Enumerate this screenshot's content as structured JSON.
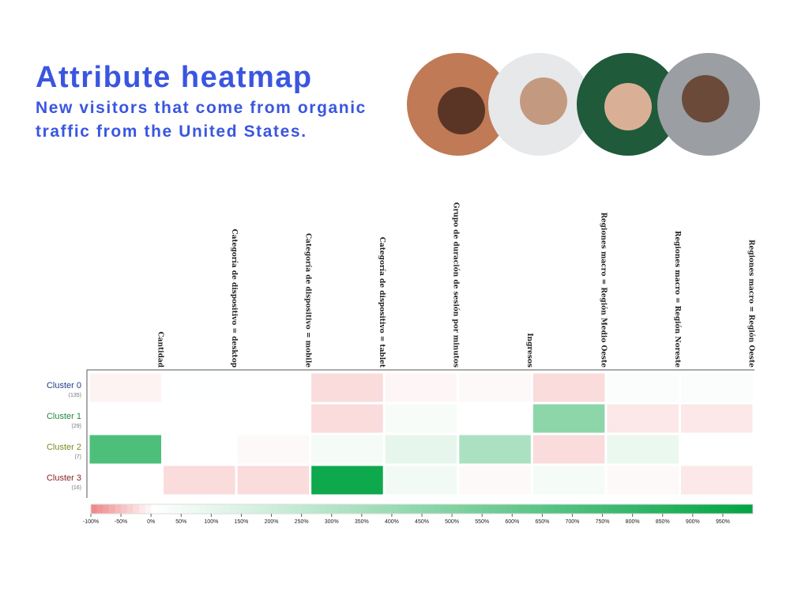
{
  "header": {
    "title": "Attribute heatmap",
    "subtitle": "New visitors that come from organic traffic from the United States."
  },
  "chart_data": {
    "type": "heatmap",
    "columns": [
      "Cantidad",
      "Categoría de dispositivo = desktop",
      "Categoría de dispositivo = mobile",
      "Categoría de dispositivo = tablet",
      "Grupo de duración de sesión por minutos",
      "Ingresos",
      "Regiones macro = Región Medio Oeste",
      "Regiones macro = Región Noreste",
      "Regiones macro = Región Oeste"
    ],
    "rows": [
      "Cluster 0",
      "Cluster 1",
      "Cluster 2",
      "Cluster 3"
    ],
    "row_counts": [
      "(135)",
      "(29)",
      "(7)",
      "(16)"
    ],
    "row_colors": [
      "#1f3d8a",
      "#1f8a3a",
      "#7a8a1f",
      "#8a1f1f"
    ],
    "values": [
      [
        -10,
        2,
        5,
        -30,
        -8,
        -5,
        -30,
        20,
        20
      ],
      [
        0,
        5,
        3,
        -30,
        30,
        0,
        450,
        -20,
        -20
      ],
      [
        700,
        5,
        -5,
        40,
        100,
        330,
        -30,
        80,
        0
      ],
      [
        3,
        -30,
        -30,
        950,
        50,
        -5,
        40,
        -5,
        -20
      ]
    ],
    "negative_color": "#ee8a8a",
    "positive_color": "#00a443",
    "clim": [
      -100,
      1000
    ],
    "cticks": [
      {
        "value": -100,
        "label": "-100%"
      },
      {
        "value": -50,
        "label": "-50%"
      },
      {
        "value": 0,
        "label": "0%"
      },
      {
        "value": 50,
        "label": "50%"
      },
      {
        "value": 100,
        "label": "100%"
      },
      {
        "value": 150,
        "label": "150%"
      },
      {
        "value": 200,
        "label": "200%"
      },
      {
        "value": 250,
        "label": "250%"
      },
      {
        "value": 300,
        "label": "300%"
      },
      {
        "value": 350,
        "label": "350%"
      },
      {
        "value": 400,
        "label": "400%"
      },
      {
        "value": 450,
        "label": "450%"
      },
      {
        "value": 500,
        "label": "500%"
      },
      {
        "value": 550,
        "label": "550%"
      },
      {
        "value": 600,
        "label": "600%"
      },
      {
        "value": 650,
        "label": "650%"
      },
      {
        "value": 700,
        "label": "700%"
      },
      {
        "value": 750,
        "label": "750%"
      },
      {
        "value": 800,
        "label": "800%"
      },
      {
        "value": 850,
        "label": "850%"
      },
      {
        "value": 900,
        "label": "900%"
      },
      {
        "value": 950,
        "label": "950%"
      }
    ]
  }
}
